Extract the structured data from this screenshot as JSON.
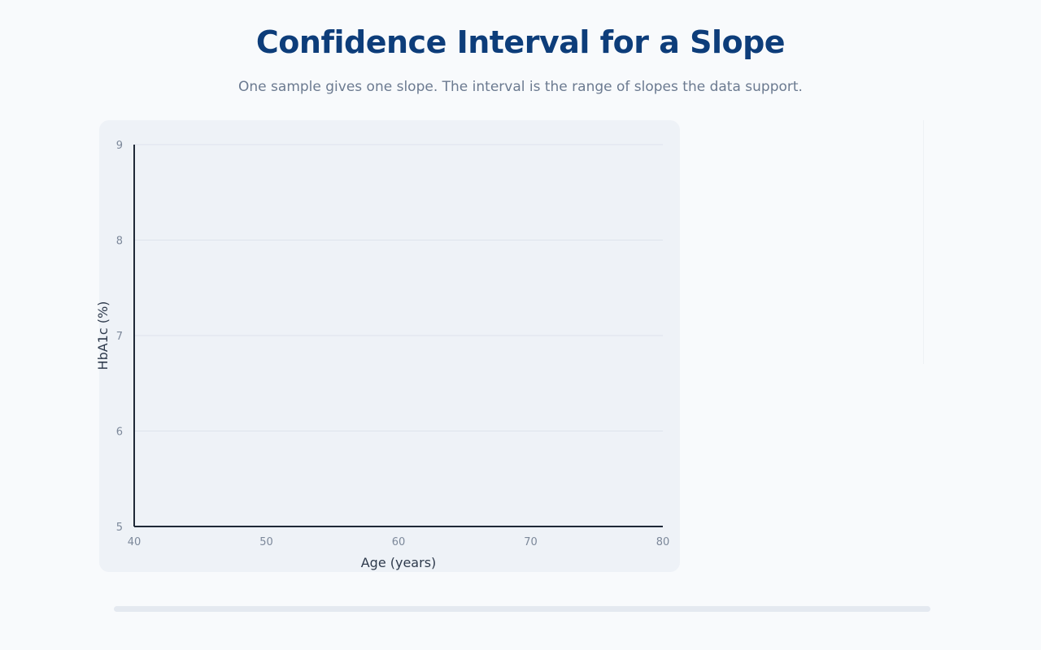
{
  "header": {
    "title": "Confidence Interval for a Slope",
    "subtitle": "One sample gives one slope. The interval is the range of slopes the data support."
  },
  "colors": {
    "title": "#0d3d7a",
    "axis": "#1f2937",
    "grid": "#dde3ec",
    "card": "#eef2f7"
  },
  "chart_data": {
    "type": "scatter",
    "title": "",
    "xlabel": "Age (years)",
    "ylabel": "HbA1c (%)",
    "xlim": [
      40,
      80
    ],
    "ylim": [
      5,
      9
    ],
    "x_ticks": [
      40,
      50,
      60,
      70,
      80
    ],
    "y_ticks": [
      5,
      6,
      7,
      8,
      9
    ],
    "grid": true,
    "series": [
      {
        "x": [],
        "y": []
      }
    ]
  }
}
